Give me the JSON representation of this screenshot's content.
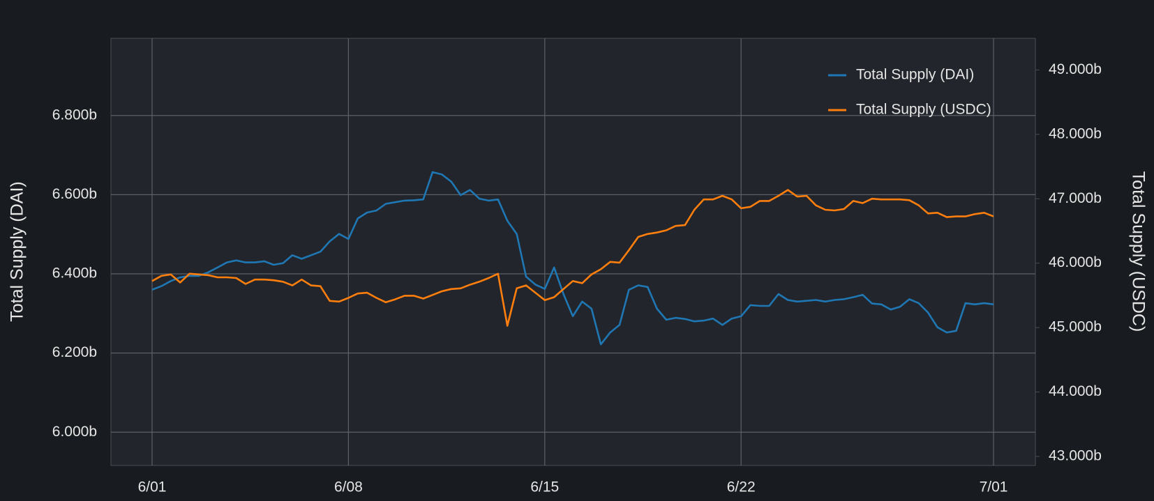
{
  "chart_data": {
    "type": "line",
    "y_label": "Total Supply (DAI)",
    "y2_label": "Total Supply (USDC)",
    "categories": [
      "6/01",
      null,
      null,
      null,
      null,
      null,
      null,
      null,
      null,
      null,
      null,
      null,
      null,
      null,
      null,
      null,
      null,
      null,
      null,
      null,
      null,
      "6/08",
      null,
      null,
      null,
      null,
      null,
      null,
      null,
      null,
      null,
      null,
      null,
      null,
      null,
      null,
      null,
      null,
      null,
      null,
      null,
      null,
      "6/15",
      null,
      null,
      null,
      null,
      null,
      null,
      null,
      null,
      null,
      null,
      null,
      null,
      null,
      null,
      null,
      null,
      null,
      null,
      null,
      null,
      "6/22",
      null,
      null,
      null,
      null,
      null,
      null,
      null,
      null,
      null,
      null,
      null,
      null,
      null,
      null,
      null,
      null,
      null,
      null,
      null,
      null,
      null,
      null,
      null,
      null,
      null,
      null,
      "7/01"
    ],
    "series": [
      {
        "name": "Total Supply (DAI)",
        "color": "#1f77b4",
        "axis": "y",
        "values": [
          6.36,
          6.369,
          6.382,
          6.391,
          6.395,
          6.395,
          6.404,
          6.416,
          6.429,
          6.434,
          6.429,
          6.429,
          6.432,
          6.423,
          6.427,
          6.447,
          6.438,
          6.447,
          6.456,
          6.482,
          6.501,
          6.488,
          6.54,
          6.555,
          6.56,
          6.577,
          6.581,
          6.585,
          6.586,
          6.588,
          6.657,
          6.651,
          6.633,
          6.599,
          6.612,
          6.59,
          6.585,
          6.588,
          6.534,
          6.501,
          6.393,
          6.373,
          6.362,
          6.416,
          6.349,
          6.293,
          6.33,
          6.312,
          6.222,
          6.252,
          6.271,
          6.36,
          6.371,
          6.367,
          6.312,
          6.284,
          6.289,
          6.286,
          6.28,
          6.282,
          6.287,
          6.271,
          6.287,
          6.293,
          6.321,
          6.319,
          6.319,
          6.349,
          6.334,
          6.33,
          6.332,
          6.334,
          6.33,
          6.334,
          6.336,
          6.341,
          6.347,
          6.325,
          6.323,
          6.31,
          6.317,
          6.336,
          6.326,
          6.302,
          6.265,
          6.252,
          6.256,
          6.326,
          6.323,
          6.326,
          6.323
        ]
      },
      {
        "name": "Total Supply (USDC)",
        "color": "#ff7f0e",
        "axis": "y2",
        "values": [
          45.723,
          45.803,
          45.826,
          45.7,
          45.837,
          45.826,
          45.814,
          45.78,
          45.78,
          45.769,
          45.678,
          45.746,
          45.746,
          45.735,
          45.712,
          45.655,
          45.746,
          45.655,
          45.643,
          45.415,
          45.404,
          45.461,
          45.529,
          45.541,
          45.461,
          45.393,
          45.438,
          45.495,
          45.495,
          45.45,
          45.507,
          45.564,
          45.598,
          45.609,
          45.666,
          45.712,
          45.769,
          45.837,
          45.028,
          45.609,
          45.655,
          45.541,
          45.427,
          45.472,
          45.598,
          45.723,
          45.689,
          45.826,
          45.906,
          46.02,
          46.008,
          46.202,
          46.407,
          46.453,
          46.476,
          46.51,
          46.578,
          46.59,
          46.829,
          46.989,
          46.989,
          47.046,
          46.989,
          46.852,
          46.875,
          46.966,
          46.966,
          47.046,
          47.137,
          47.034,
          47.046,
          46.897,
          46.829,
          46.818,
          46.84,
          46.966,
          46.932,
          47.0,
          46.989,
          46.989,
          46.989,
          46.977,
          46.897,
          46.772,
          46.783,
          46.715,
          46.726,
          46.726,
          46.761,
          46.783,
          46.726
        ]
      }
    ],
    "ylim": [
      5.916,
      6.995
    ],
    "yticks": [
      {
        "value": 6.0,
        "label": "6.000b"
      },
      {
        "value": 6.2,
        "label": "6.200b"
      },
      {
        "value": 6.4,
        "label": "6.400b"
      },
      {
        "value": 6.6,
        "label": "6.600b"
      },
      {
        "value": 6.8,
        "label": "6.800b"
      }
    ],
    "y2lim": [
      42.86,
      49.49
    ],
    "y2ticks": [
      {
        "value": 43,
        "label": "43.000b"
      },
      {
        "value": 44,
        "label": "44.000b"
      },
      {
        "value": 45,
        "label": "45.000b"
      },
      {
        "value": 46,
        "label": "46.000b"
      },
      {
        "value": 47,
        "label": "47.000b"
      },
      {
        "value": 48,
        "label": "48.000b"
      },
      {
        "value": 49,
        "label": "49.000b"
      }
    ],
    "grid": true,
    "legend": "top-right"
  }
}
